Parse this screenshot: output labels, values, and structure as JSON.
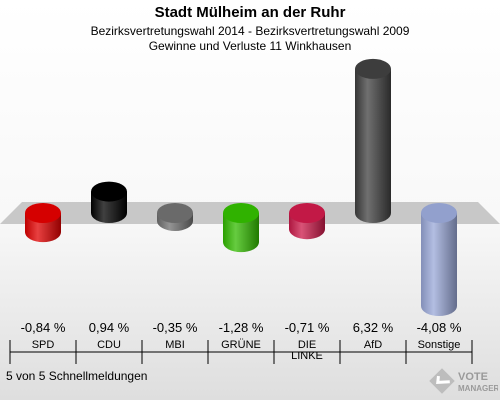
{
  "title": "Stadt Mülheim an der Ruhr",
  "subtitle1": "Bezirksvertretungswahl 2014 - Bezirksvertretungswahl 2009",
  "subtitle2": "Gewinne und Verluste 11 Winkhausen",
  "footer": "5 von 5 Schnellmeldungen",
  "logo": {
    "line1": "VOTE",
    "line2": "MANAGER"
  },
  "chart_data": {
    "type": "bar",
    "categories": [
      "SPD",
      "CDU",
      "MBI",
      "GRÜNE",
      "DIE LINKE",
      "AfD",
      "Sonstige"
    ],
    "category_lines": [
      [
        "SPD"
      ],
      [
        "CDU"
      ],
      [
        "MBI"
      ],
      [
        "GRÜNE"
      ],
      [
        "DIE",
        "LINKE"
      ],
      [
        "AfD"
      ],
      [
        "Sonstige"
      ]
    ],
    "values": [
      -0.84,
      0.94,
      -0.35,
      -1.28,
      -0.71,
      6.32,
      -4.08
    ],
    "value_labels": [
      "-0,84 %",
      "0,94 %",
      "-0,35 %",
      "-1,28 %",
      "-0,71 %",
      "6,32 %",
      "-4,08 %"
    ],
    "colors": [
      "#e00000",
      "#000000",
      "#707070",
      "#33bb00",
      "#cc1a4a",
      "#404040",
      "#9aa8d8"
    ],
    "baseline": 0,
    "grid": false,
    "legend": "none"
  }
}
